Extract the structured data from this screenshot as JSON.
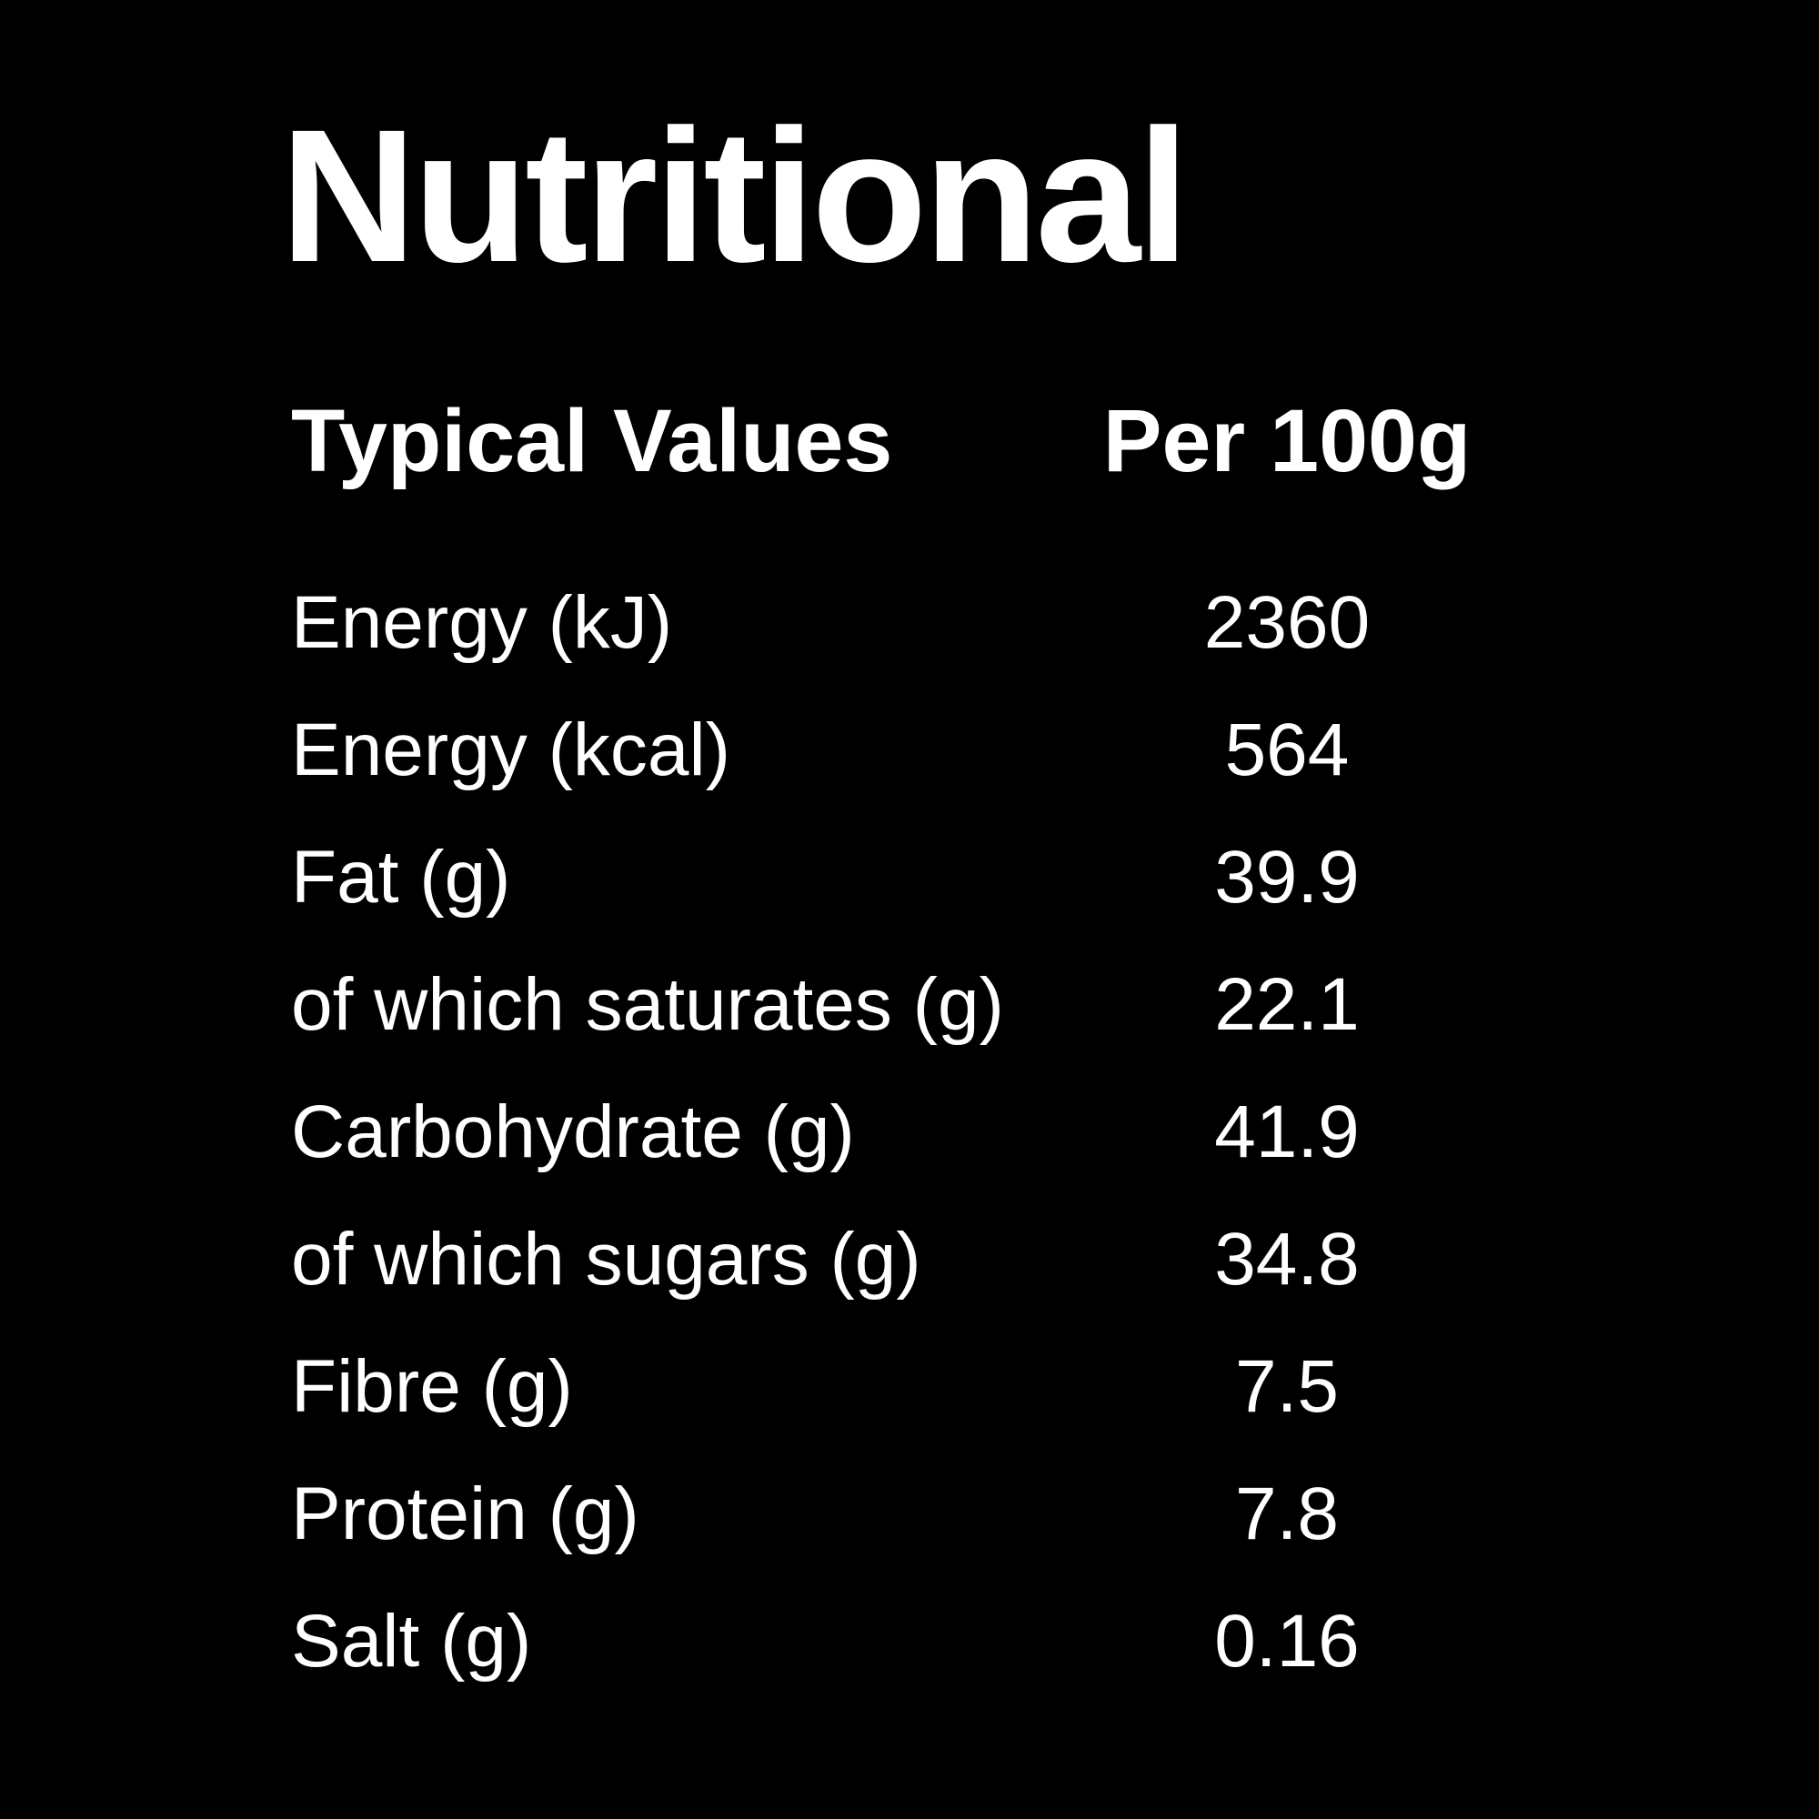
{
  "page": {
    "background_color": "#000000",
    "text_color": "#ffffff"
  },
  "title": "Nutritional",
  "table": {
    "column_headers": {
      "label_column": "Typical Values",
      "value_column": "Per 100g"
    },
    "rows": [
      {
        "label": "Energy (kJ)",
        "value": "2360"
      },
      {
        "label": "Energy (kcal)",
        "value": "564"
      },
      {
        "label": "Fat (g)",
        "value": "39.9"
      },
      {
        "label": "of which saturates (g)",
        "value": "22.1"
      },
      {
        "label": "Carbohydrate (g)",
        "value": "41.9"
      },
      {
        "label": "of which sugars (g)",
        "value": "34.8"
      },
      {
        "label": "Fibre (g)",
        "value": "7.5"
      },
      {
        "label": "Protein (g)",
        "value": "7.8"
      },
      {
        "label": "Salt (g)",
        "value": "0.16"
      }
    ]
  }
}
